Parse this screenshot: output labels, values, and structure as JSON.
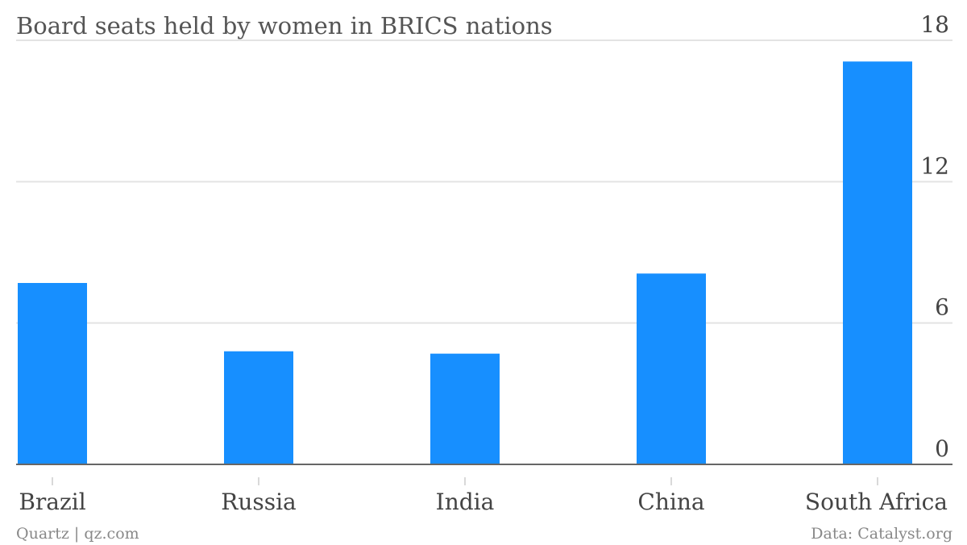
{
  "chart_data": {
    "type": "bar",
    "title": "Board seats held by women in BRICS nations",
    "categories": [
      "Brazil",
      "Russia",
      "India",
      "China",
      "South Africa"
    ],
    "values": [
      7.7,
      4.8,
      4.7,
      8.1,
      17.1
    ],
    "ylim": [
      0,
      18
    ],
    "yticks": [
      "0",
      "6",
      "12",
      "18"
    ],
    "y_axis_side": "right",
    "grid": true,
    "bar_color": "#178fff"
  },
  "footer": {
    "left": "Quartz | qz.com",
    "right": "Data: Catalyst.org"
  }
}
